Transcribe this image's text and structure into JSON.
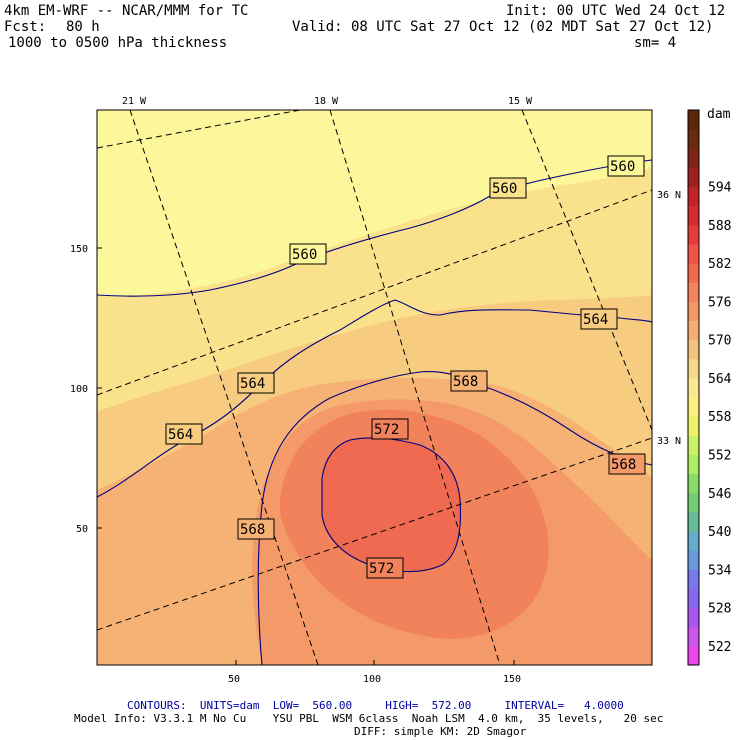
{
  "header": {
    "model": "4km EM-WRF -- NCAR/MMM for TC",
    "init": "Init: 00 UTC Wed 24 Oct 12",
    "fcst_label": "Fcst:",
    "fcst_value": "80 h",
    "valid": "Valid: 08 UTC Sat 27 Oct 12 (02 MDT Sat 27 Oct 12)",
    "field": "1000 to 0500 hPa thickness",
    "smoothing": "sm= 4"
  },
  "axes": {
    "x_ticks": [
      "50",
      "100",
      "150"
    ],
    "y_ticks": [
      "50",
      "100",
      "150"
    ],
    "lon_labels": [
      "21 W",
      "18 W",
      "15 W"
    ],
    "lat_labels": [
      "36 N",
      "33 N"
    ]
  },
  "contour_labels": [
    "560",
    "560",
    "560",
    "564",
    "564",
    "564",
    "568",
    "568",
    "568",
    "572",
    "572"
  ],
  "colorbar": {
    "unit": "dam",
    "levels": [
      "522",
      "528",
      "534",
      "540",
      "546",
      "552",
      "558",
      "564",
      "570",
      "576",
      "582",
      "588",
      "594"
    ],
    "intermediate": [
      "525",
      "531",
      "537",
      "543",
      "549",
      "555",
      "561",
      "567",
      "573",
      "579",
      "585",
      "591",
      "597"
    ],
    "colors": [
      "#ee44ee",
      "#cc55ee",
      "#aa55ee",
      "#8866ee",
      "#7777ee",
      "#6699dd",
      "#66aacc",
      "#66bb99",
      "#77cc77",
      "#88dd66",
      "#aaee66",
      "#ccf066",
      "#eef066",
      "#fbf080",
      "#f8e890",
      "#f5d888",
      "#f4c27a",
      "#f4ae6e",
      "#f49866",
      "#f4825a",
      "#f26a4e",
      "#f05444",
      "#e63c3c",
      "#d42c30",
      "#c02428",
      "#a02020",
      "#802418",
      "#6a2a10",
      "#5a2808"
    ]
  },
  "footer": {
    "contours": "CONTOURS:  UNITS=dam  LOW=  560.00     HIGH=  572.00     INTERVAL=   4.0000",
    "model_info": "Model Info: V3.3.1 M No Cu    YSU PBL  WSM 6class  Noah LSM  4.0 km,  35 levels,   20 sec",
    "diff": "DIFF: simple KM: 2D Smagor"
  },
  "fill_colors": {
    "yellow": "#fbf79a",
    "light_yellow_orange": "#fae28d",
    "orange1": "#f8cc80",
    "orange2": "#f6b275",
    "orange3": "#f39a68",
    "orange4": "#f1825c",
    "red_core": "#ef6a50"
  }
}
